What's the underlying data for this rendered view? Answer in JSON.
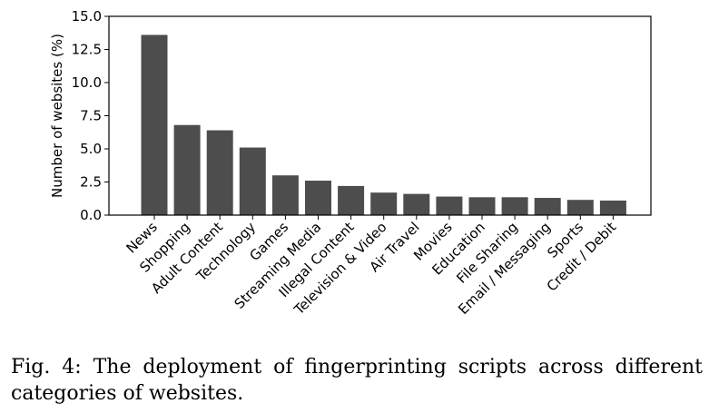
{
  "chart_data": {
    "type": "bar",
    "categories": [
      "News",
      "Shopping",
      "Adult Content",
      "Technology",
      "Games",
      "Streaming Media",
      "Illegal Content",
      "Television & Video",
      "Air Travel",
      "Movies",
      "Education",
      "File Sharing",
      "Email / Messaging",
      "Sports",
      "Credit / Debit"
    ],
    "values": [
      13.6,
      6.8,
      6.4,
      5.1,
      3.0,
      2.6,
      2.2,
      1.7,
      1.6,
      1.4,
      1.35,
      1.35,
      1.3,
      1.15,
      1.1
    ],
    "ylabel": "Number of websites (%)",
    "ylim": [
      0,
      15
    ],
    "yticks": [
      "0.0",
      "2.5",
      "5.0",
      "7.5",
      "10.0",
      "12.5",
      "15.0"
    ],
    "bar_color": "#4d4d4d",
    "grid": false
  },
  "caption": "Fig. 4: The deployment of fingerprinting scripts across different categories of websites."
}
